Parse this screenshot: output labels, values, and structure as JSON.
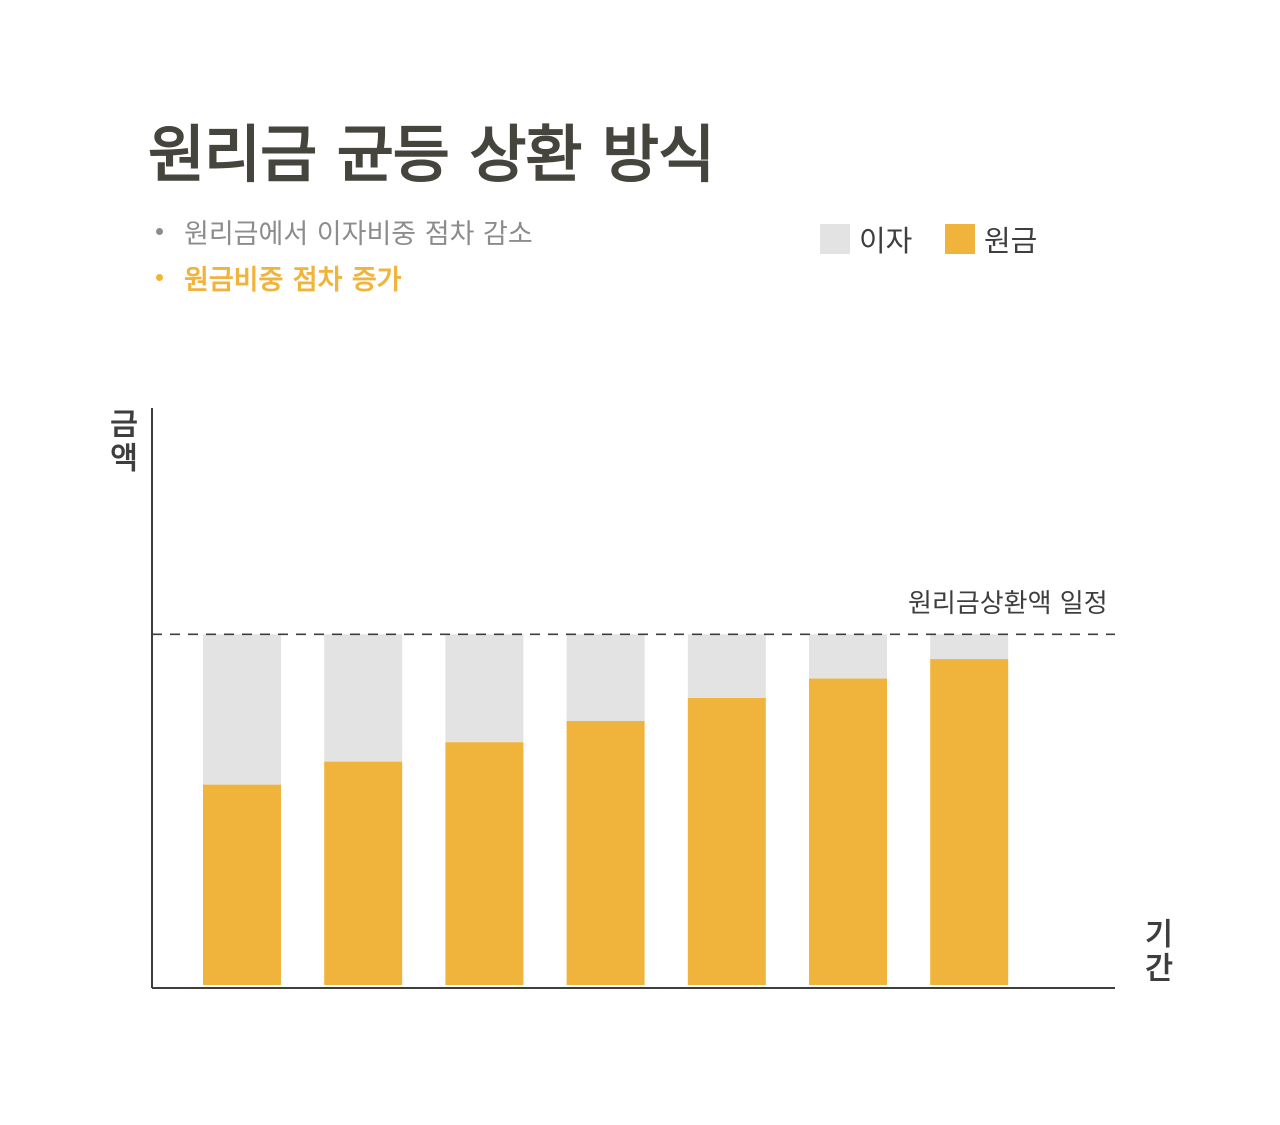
{
  "title": "원리금 균등 상환 방식",
  "notes": [
    "원리금에서 이자비중 점차 감소",
    "원금비중 점차 증가"
  ],
  "legend": {
    "interest_label": "이자",
    "principal_label": "원금"
  },
  "colors": {
    "interest": "#e3e3e3",
    "principal": "#f0b33c",
    "text": "#46453d",
    "axis": "#3e3e3e"
  },
  "chart_data": {
    "type": "bar",
    "stacked": true,
    "categories": [
      "",
      "",
      "",
      "",
      "",
      "",
      ""
    ],
    "series": [
      {
        "name": "원금",
        "values": [
          57.5,
          64.0,
          69.5,
          75.5,
          82.0,
          87.5,
          93.0
        ]
      },
      {
        "name": "이자",
        "values": [
          42.5,
          36.0,
          30.5,
          24.5,
          18.0,
          12.5,
          7.0
        ]
      }
    ],
    "ylim": [
      0,
      100
    ],
    "ymax_axis": 164,
    "reference_line": {
      "value": 100,
      "label": "원리금상환액 일정",
      "style": "dashed"
    },
    "xlabel": "기간",
    "ylabel": "금액",
    "grid": false,
    "legend_position": "top-right"
  }
}
